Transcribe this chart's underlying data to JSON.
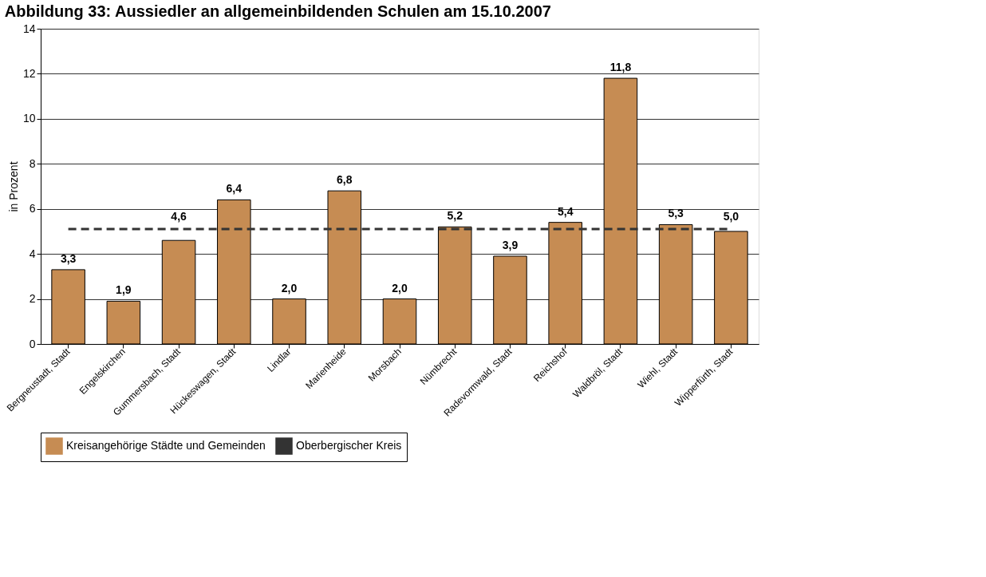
{
  "chart_data": {
    "type": "bar",
    "title": "Abbildung 33: Aussiedler an allgemeinbildenden Schulen am 15.10.2007",
    "ylabel": "in Prozent",
    "categories": [
      "Bergneustadt, Stadt",
      "Engelskirchen",
      "Gummersbach, Stadt",
      "Hückeswagen, Stadt",
      "Lindlar",
      "Marienheide",
      "Morsbach",
      "Nümbrecht",
      "Radevormwald, Stadt",
      "Reichshof",
      "Waldbröl, Stadt",
      "Wiehl, Stadt",
      "Wipperfürth, Stadt"
    ],
    "series": [
      {
        "name": "Kreisangehörige Städte und Gemeinden",
        "color": "#c68c53",
        "values": [
          3.3,
          1.9,
          4.6,
          6.4,
          2.0,
          6.8,
          2.0,
          5.2,
          3.9,
          5.4,
          11.8,
          5.3,
          5.0
        ],
        "value_labels": [
          "3,3",
          "1,9",
          "4,6",
          "6,4",
          "2,0",
          "6,8",
          "2,0",
          "5,2",
          "3,9",
          "5,4",
          "11,8",
          "5,3",
          "5,0"
        ]
      },
      {
        "name": "Oberbergischer Kreis",
        "type": "line",
        "color": "#333333",
        "line_style": "dashed",
        "values": [
          5.1,
          5.1,
          5.1,
          5.1,
          5.1,
          5.1,
          5.1,
          5.1,
          5.1,
          5.1,
          5.1,
          5.1,
          5.1
        ]
      }
    ],
    "ylim": [
      0,
      14
    ],
    "yticks": [
      0,
      2,
      4,
      6,
      8,
      10,
      12,
      14
    ],
    "grid": "y",
    "legend": "bottom"
  }
}
